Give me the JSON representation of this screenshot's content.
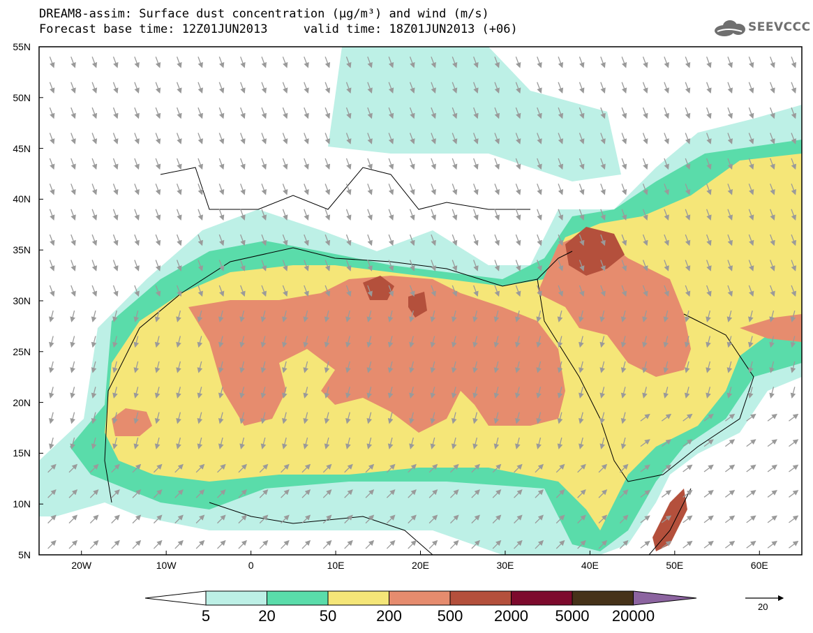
{
  "title_line1": "DREAM8-assim: Surface dust concentration (μg/m³) and wind (m/s)",
  "title_line2": "Forecast base time: 12Z01JUN2013     valid time: 18Z01JUN2013 (+06)",
  "logo_text": "SEEVCCC",
  "lat_labels": [
    "55N",
    "50N",
    "45N",
    "40N",
    "35N",
    "30N",
    "25N",
    "20N",
    "15N",
    "10N",
    "5N"
  ],
  "lon_labels": [
    "20W",
    "10W",
    "0",
    "10E",
    "20E",
    "30E",
    "40E",
    "50E",
    "60E"
  ],
  "colorbar": {
    "labels": [
      "5",
      "20",
      "50",
      "200",
      "500",
      "2000",
      "5000",
      "20000"
    ],
    "colors": [
      "#bdf0e6",
      "#5adcaa",
      "#f5e678",
      "#e68c6e",
      "#b4503c",
      "#7d0a2d",
      "#463219",
      "#8c64a0"
    ]
  },
  "wind_ref_label": "20",
  "map_extent": {
    "lon": [
      -25,
      65
    ],
    "lat": [
      5,
      55
    ]
  }
}
